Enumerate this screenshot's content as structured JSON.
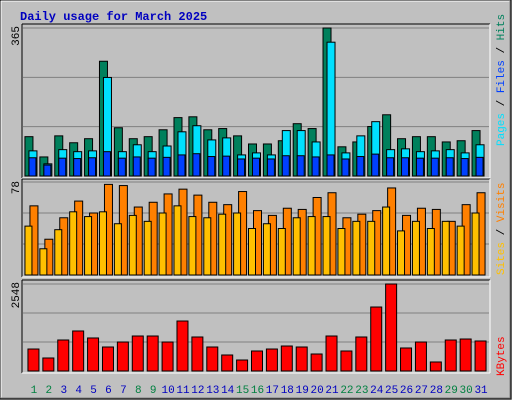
{
  "chart_data": [
    {
      "type": "bar",
      "title": "Daily usage for March 2025",
      "legend_separator": " / ",
      "ylim": [
        0,
        365
      ],
      "yticks": [
        365
      ],
      "grid": true,
      "series": [
        {
          "name": "Pages",
          "color": "#00e0ff",
          "values": [
            62,
            30,
            65,
            60,
            62,
            243,
            60,
            77,
            60,
            74,
            109,
            124,
            89,
            94,
            52,
            57,
            52,
            112,
            112,
            84,
            330,
            57,
            99,
            134,
            65,
            67,
            60,
            62,
            65,
            57,
            77
          ]
        },
        {
          "name": "Files",
          "color": "#0040ff",
          "values": [
            45,
            27,
            44,
            43,
            45,
            60,
            44,
            47,
            44,
            46,
            52,
            55,
            48,
            49,
            42,
            44,
            42,
            50,
            50,
            47,
            52,
            42,
            48,
            54,
            45,
            45,
            44,
            44,
            45,
            43,
            46
          ]
        },
        {
          "name": "Hits",
          "color": "#00805c",
          "values": [
            97,
            47,
            99,
            82,
            92,
            283,
            119,
            92,
            97,
            114,
            144,
            146,
            114,
            117,
            99,
            79,
            79,
            87,
            129,
            117,
            365,
            72,
            84,
            122,
            151,
            92,
            97,
            97,
            84,
            87,
            112
          ]
        }
      ]
    },
    {
      "type": "bar",
      "legend_separator": " / ",
      "ylim": [
        0,
        78
      ],
      "yticks": [
        78
      ],
      "grid": true,
      "series": [
        {
          "name": "Sites",
          "color": "#ffc000",
          "values": [
            41,
            22,
            38,
            53,
            49,
            53,
            43,
            50,
            45,
            52,
            58,
            49,
            48,
            51,
            52,
            39,
            43,
            39,
            48,
            49,
            49,
            39,
            45,
            45,
            57,
            37,
            45,
            39,
            45,
            41,
            52
          ]
        },
        {
          "name": "Visits",
          "color": "#ff8000",
          "values": [
            58,
            30,
            48,
            62,
            52,
            76,
            75,
            57,
            61,
            68,
            72,
            67,
            61,
            59,
            70,
            54,
            50,
            56,
            55,
            65,
            69,
            48,
            51,
            54,
            73,
            50,
            56,
            55,
            45,
            59,
            69
          ]
        }
      ]
    },
    {
      "type": "bar",
      "ylim": [
        0,
        2548
      ],
      "yticks": [
        2548
      ],
      "grid": true,
      "categories": [
        "1",
        "2",
        "3",
        "4",
        "5",
        "6",
        "7",
        "8",
        "9",
        "10",
        "11",
        "12",
        "13",
        "14",
        "15",
        "16",
        "17",
        "18",
        "19",
        "20",
        "21",
        "22",
        "23",
        "24",
        "25",
        "26",
        "27",
        "28",
        "29",
        "30",
        "31"
      ],
      "category_colors": [
        "#008040",
        "#008040",
        "#0000c0",
        "#0000c0",
        "#0000c0",
        "#0000c0",
        "#0000c0",
        "#008040",
        "#008040",
        "#0000c0",
        "#0000c0",
        "#0000c0",
        "#0000c0",
        "#0000c0",
        "#008040",
        "#008040",
        "#0000c0",
        "#0000c0",
        "#0000c0",
        "#0000c0",
        "#0000c0",
        "#008040",
        "#008040",
        "#0000c0",
        "#0000c0",
        "#0000c0",
        "#0000c0",
        "#0000c0",
        "#008040",
        "#008040",
        "#0000c0"
      ],
      "series": [
        {
          "name": "KBytes",
          "color": "#ff0000",
          "values": [
            644,
            381,
            908,
            1172,
            967,
            703,
            849,
            1025,
            1025,
            849,
            1464,
            996,
            703,
            469,
            322,
            586,
            644,
            732,
            703,
            498,
            1025,
            586,
            996,
            1874,
            2548,
            674,
            849,
            264,
            908,
            937,
            879
          ]
        }
      ]
    }
  ]
}
